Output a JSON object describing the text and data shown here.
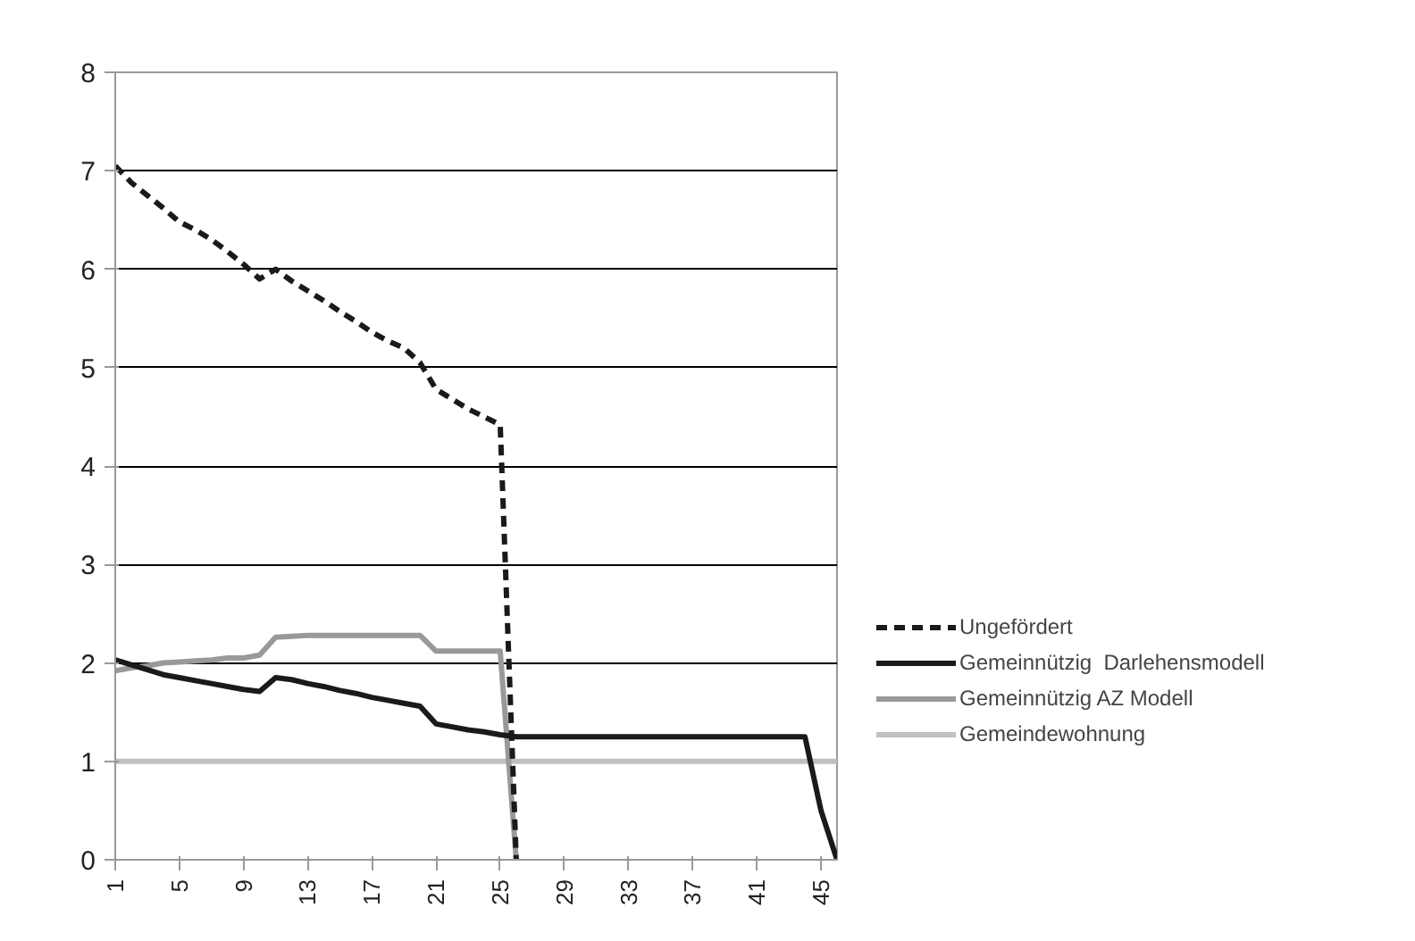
{
  "chart_data": {
    "type": "line",
    "categories": [
      "1",
      null,
      null,
      null,
      "5",
      null,
      null,
      null,
      "9",
      null,
      null,
      null,
      "13",
      null,
      null,
      null,
      "17",
      null,
      null,
      null,
      "21",
      null,
      null,
      null,
      "25",
      null,
      null,
      null,
      "29",
      null,
      null,
      null,
      "33",
      null,
      null,
      null,
      "37",
      null,
      null,
      null,
      "41",
      null,
      null,
      null,
      "45",
      null
    ],
    "series": [
      {
        "name": "Ungefördert",
        "color": "#1a1a1a",
        "line_style": "dashed",
        "values": [
          7.05,
          6.88,
          6.75,
          6.62,
          6.48,
          6.4,
          6.3,
          6.18,
          6.05,
          5.9,
          6.0,
          5.88,
          5.78,
          5.68,
          5.57,
          5.47,
          5.36,
          5.27,
          5.2,
          5.05,
          4.78,
          4.68,
          4.58,
          4.5,
          4.42,
          0,
          null,
          null,
          null,
          null,
          null,
          null,
          null,
          null,
          null,
          null,
          null,
          null,
          null,
          null,
          null,
          null,
          null,
          null,
          null,
          null
        ]
      },
      {
        "name": "Gemeinnützig  Darlehensmodell",
        "color": "#1a1a1a",
        "line_style": "solid",
        "values": [
          2.03,
          1.98,
          1.93,
          1.88,
          1.85,
          1.82,
          1.79,
          1.76,
          1.73,
          1.71,
          1.85,
          1.83,
          1.79,
          1.76,
          1.72,
          1.69,
          1.65,
          1.62,
          1.59,
          1.56,
          1.38,
          1.35,
          1.32,
          1.3,
          1.27,
          1.25,
          1.25,
          1.25,
          1.25,
          1.25,
          1.25,
          1.25,
          1.25,
          1.25,
          1.25,
          1.25,
          1.25,
          1.25,
          1.25,
          1.25,
          1.25,
          1.25,
          1.25,
          1.25,
          0.5,
          0
        ]
      },
      {
        "name": "Gemeinnützig AZ Modell",
        "color": "#999999",
        "line_style": "solid",
        "values": [
          1.92,
          1.95,
          1.97,
          2.0,
          2.01,
          2.02,
          2.03,
          2.05,
          2.05,
          2.08,
          2.26,
          2.27,
          2.28,
          2.28,
          2.28,
          2.28,
          2.28,
          2.28,
          2.28,
          2.28,
          2.12,
          2.12,
          2.12,
          2.12,
          2.12,
          0,
          null,
          null,
          null,
          null,
          null,
          null,
          null,
          null,
          null,
          null,
          null,
          null,
          null,
          null,
          null,
          null,
          null,
          null,
          null,
          null
        ]
      },
      {
        "name": "Gemeindewohnung",
        "color": "#c0c0c0",
        "line_style": "solid",
        "values": [
          1,
          1,
          1,
          1,
          1,
          1,
          1,
          1,
          1,
          1,
          1,
          1,
          1,
          1,
          1,
          1,
          1,
          1,
          1,
          1,
          1,
          1,
          1,
          1,
          1,
          1,
          1,
          1,
          1,
          1,
          1,
          1,
          1,
          1,
          1,
          1,
          1,
          1,
          1,
          1,
          1,
          1,
          1,
          1,
          1,
          1
        ]
      }
    ],
    "ylim": [
      0,
      8
    ],
    "yticks": [
      0,
      1,
      2,
      3,
      4,
      5,
      6,
      7,
      8
    ],
    "grid": "y",
    "legend": "right",
    "marker": "none"
  }
}
